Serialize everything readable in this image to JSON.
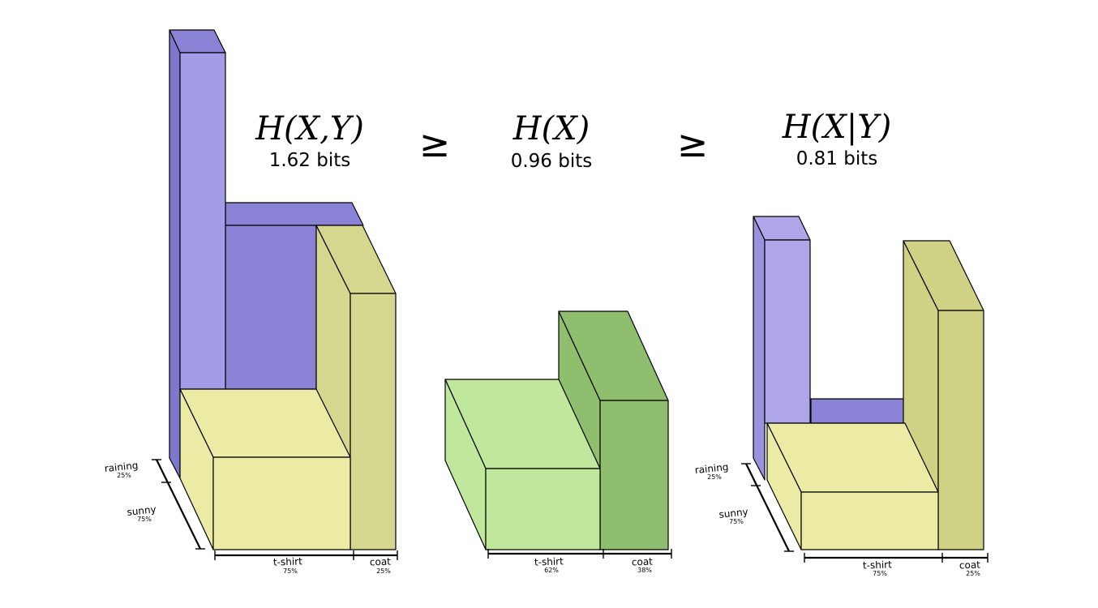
{
  "headings": {
    "joint": {
      "expr": "H(X,Y)",
      "value": "1.62 bits"
    },
    "marginal": {
      "expr": "H(X)",
      "value": "0.96 bits"
    },
    "conditional": {
      "expr": "H(X|Y)",
      "value": "0.81 bits"
    },
    "relation_1": "≥",
    "relation_2": "≥"
  },
  "axes": {
    "joint": {
      "x": [
        {
          "label": "t-shirt",
          "pct": "75%"
        },
        {
          "label": "coat",
          "pct": "25%"
        }
      ],
      "y": [
        {
          "label": "raining",
          "pct": "25%"
        },
        {
          "label": "sunny",
          "pct": "75%"
        }
      ]
    },
    "marginal": {
      "x": [
        {
          "label": "t-shirt",
          "pct": "62%"
        },
        {
          "label": "coat",
          "pct": "38%"
        }
      ]
    },
    "conditional": {
      "x": [
        {
          "label": "t-shirt",
          "pct": "75%"
        },
        {
          "label": "coat",
          "pct": "25%"
        }
      ],
      "y": [
        {
          "label": "raining",
          "pct": "25%"
        },
        {
          "label": "sunny",
          "pct": "75%"
        }
      ]
    }
  },
  "colors": {
    "rain_front": "#a39ce6",
    "rain_back": "#8a82d4",
    "sun_front": "#ebeba6",
    "sun_side": "#d6d78e",
    "marg_front": "#bfe89c",
    "marg_side": "#8fbe6e",
    "cond_rain": "#aea6e8",
    "cond_sun": "#cfd285"
  }
}
